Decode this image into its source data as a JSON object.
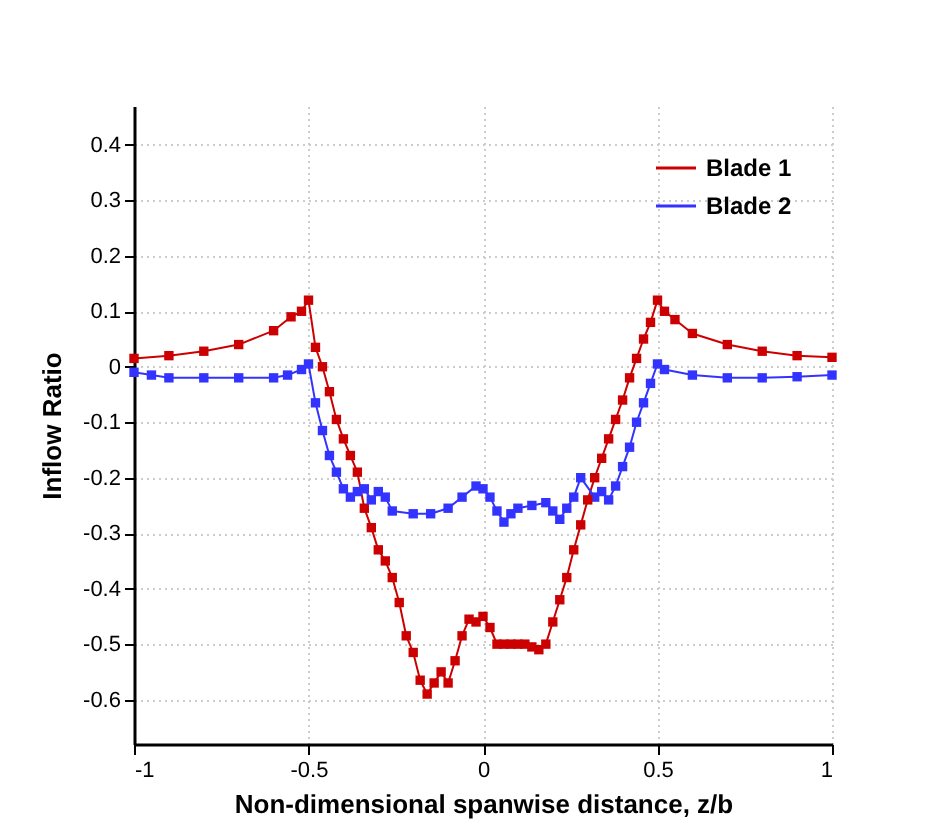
{
  "chart_data": {
    "type": "line",
    "xlabel": "Non-dimensional spanwise distance, z/b",
    "ylabel": "Inflow Ratio",
    "xlim": [
      -1,
      1
    ],
    "ylim": [
      -0.68,
      0.47
    ],
    "xticks": [
      -1,
      -0.5,
      0,
      0.5,
      1
    ],
    "yticks": [
      -0.6,
      -0.5,
      -0.4,
      -0.3,
      -0.2,
      -0.1,
      0,
      0.1,
      0.2,
      0.3,
      0.4
    ],
    "grid": true,
    "legend": "top right",
    "marker": "square",
    "line_style": "solid",
    "series": [
      {
        "name": "Blade 1",
        "color": "#cc0000",
        "x": [
          -1,
          -0.9,
          -0.8,
          -0.7,
          -0.6,
          -0.55,
          -0.52,
          -0.5,
          -0.48,
          -0.46,
          -0.44,
          -0.42,
          -0.4,
          -0.38,
          -0.36,
          -0.34,
          -0.32,
          -0.3,
          -0.28,
          -0.26,
          -0.24,
          -0.22,
          -0.2,
          -0.18,
          -0.16,
          -0.14,
          -0.12,
          -0.1,
          -0.08,
          -0.06,
          -0.04,
          -0.02,
          0,
          0.02,
          0.04,
          0.06,
          0.08,
          0.1,
          0.12,
          0.14,
          0.16,
          0.18,
          0.2,
          0.22,
          0.24,
          0.26,
          0.28,
          0.3,
          0.32,
          0.34,
          0.36,
          0.38,
          0.4,
          0.42,
          0.44,
          0.46,
          0.48,
          0.5,
          0.52,
          0.55,
          0.6,
          0.7,
          0.8,
          0.9,
          1
        ],
        "values": [
          0.015,
          0.02,
          0.028,
          0.04,
          0.065,
          0.09,
          0.1,
          0.12,
          0.035,
          0.0,
          -0.045,
          -0.095,
          -0.13,
          -0.16,
          -0.19,
          -0.255,
          -0.29,
          -0.33,
          -0.35,
          -0.38,
          -0.425,
          -0.485,
          -0.515,
          -0.565,
          -0.59,
          -0.57,
          -0.55,
          -0.57,
          -0.53,
          -0.485,
          -0.455,
          -0.46,
          -0.45,
          -0.47,
          -0.5,
          -0.5,
          -0.5,
          -0.5,
          -0.5,
          -0.505,
          -0.51,
          -0.5,
          -0.46,
          -0.42,
          -0.38,
          -0.33,
          -0.285,
          -0.24,
          -0.2,
          -0.165,
          -0.13,
          -0.095,
          -0.06,
          -0.02,
          0.015,
          0.05,
          0.08,
          0.12,
          0.1,
          0.085,
          0.06,
          0.04,
          0.028,
          0.02,
          0.017
        ]
      },
      {
        "name": "Blade 2",
        "color": "#3333ff",
        "x": [
          -1,
          -0.95,
          -0.9,
          -0.8,
          -0.7,
          -0.6,
          -0.56,
          -0.52,
          -0.5,
          -0.48,
          -0.46,
          -0.44,
          -0.42,
          -0.4,
          -0.38,
          -0.36,
          -0.34,
          -0.32,
          -0.3,
          -0.28,
          -0.26,
          -0.2,
          -0.15,
          -0.1,
          -0.06,
          -0.02,
          0,
          0.02,
          0.04,
          0.06,
          0.08,
          0.1,
          0.14,
          0.18,
          0.2,
          0.22,
          0.24,
          0.26,
          0.28,
          0.32,
          0.34,
          0.36,
          0.38,
          0.4,
          0.42,
          0.44,
          0.46,
          0.48,
          0.5,
          0.52,
          0.6,
          0.7,
          0.8,
          0.9,
          1
        ],
        "values": [
          -0.01,
          -0.015,
          -0.02,
          -0.02,
          -0.02,
          -0.02,
          -0.015,
          -0.005,
          0.005,
          -0.065,
          -0.115,
          -0.16,
          -0.19,
          -0.22,
          -0.235,
          -0.225,
          -0.22,
          -0.24,
          -0.225,
          -0.235,
          -0.26,
          -0.265,
          -0.265,
          -0.255,
          -0.235,
          -0.215,
          -0.22,
          -0.235,
          -0.26,
          -0.28,
          -0.265,
          -0.255,
          -0.25,
          -0.245,
          -0.26,
          -0.275,
          -0.255,
          -0.235,
          -0.2,
          -0.235,
          -0.225,
          -0.24,
          -0.215,
          -0.18,
          -0.145,
          -0.1,
          -0.065,
          -0.03,
          0.005,
          -0.005,
          -0.015,
          -0.02,
          -0.02,
          -0.018,
          -0.015
        ]
      }
    ]
  }
}
